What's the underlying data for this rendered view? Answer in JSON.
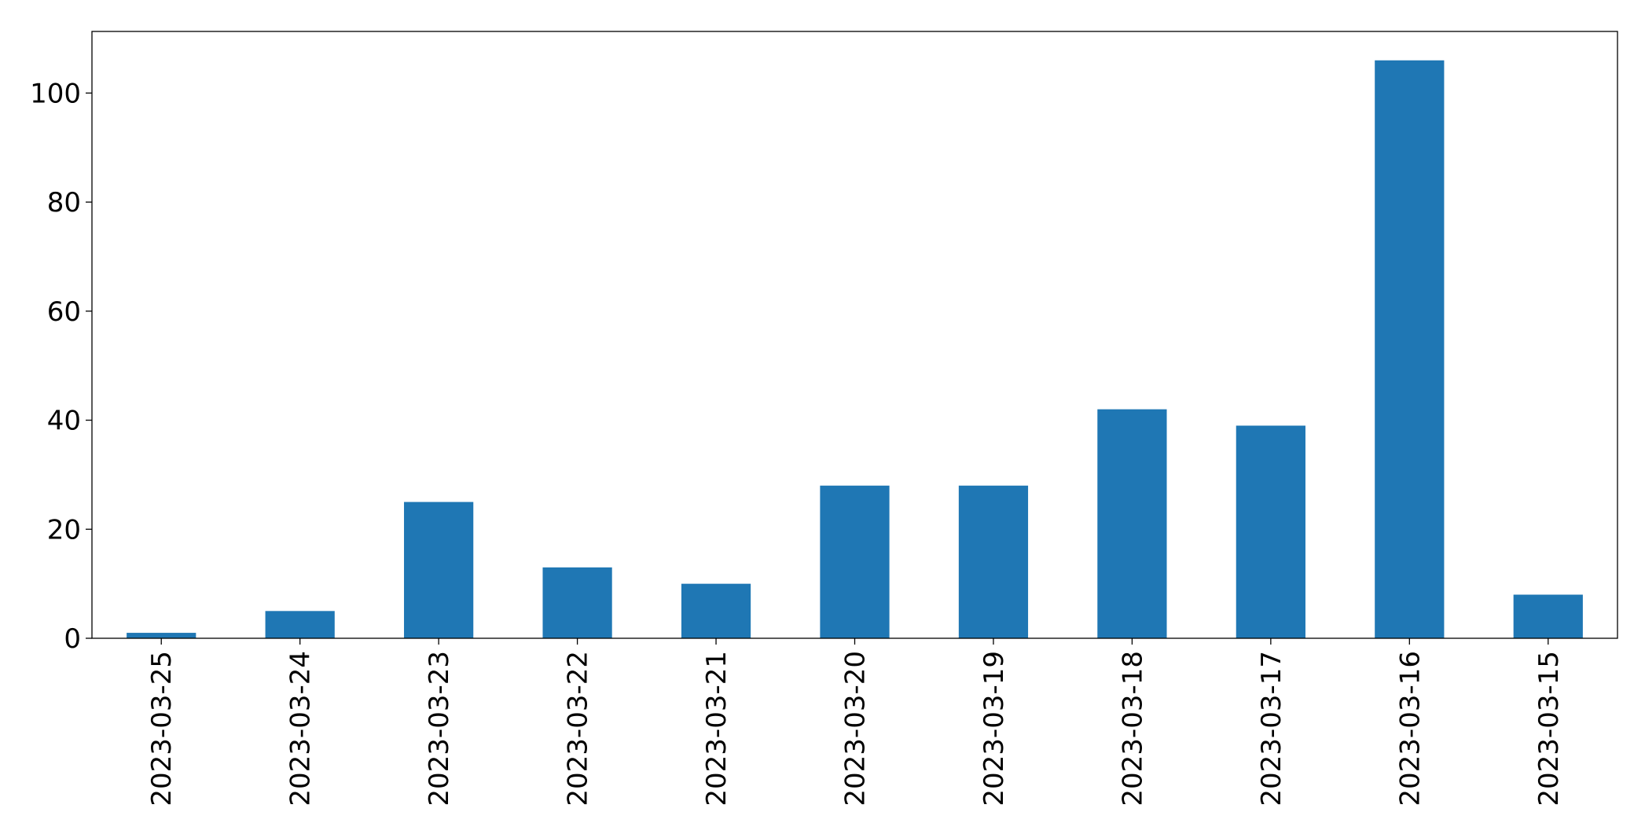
{
  "chart_data": {
    "type": "bar",
    "title": "",
    "xlabel": "",
    "ylabel": "",
    "categories": [
      "2023-03-25",
      "2023-03-24",
      "2023-03-23",
      "2023-03-22",
      "2023-03-21",
      "2023-03-20",
      "2023-03-19",
      "2023-03-18",
      "2023-03-17",
      "2023-03-16",
      "2023-03-15"
    ],
    "values": [
      1,
      5,
      25,
      13,
      10,
      28,
      28,
      42,
      39,
      106,
      8
    ],
    "ylim": [
      0,
      111.3
    ],
    "yticks": [
      0,
      20,
      40,
      60,
      80,
      100
    ],
    "ytick_labels": [
      "0",
      "20",
      "40",
      "60",
      "80",
      "100"
    ],
    "grid": false,
    "legend": "none",
    "bar_color": "#1f77b4"
  }
}
